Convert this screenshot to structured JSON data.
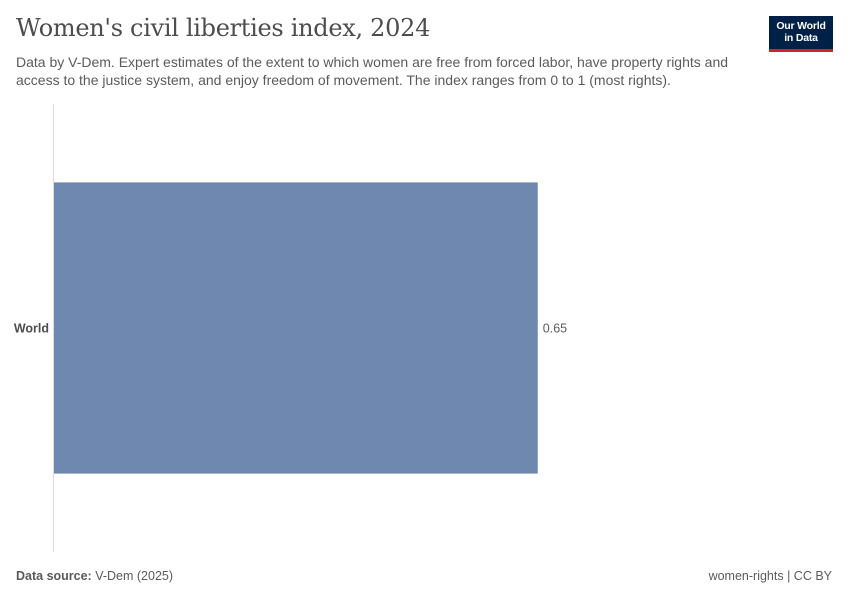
{
  "header": {
    "title": "Women's civil liberties index, 2024",
    "subtitle": "Data by V-Dem. Expert estimates of the extent to which women are free from forced labor, have property rights and access to the justice system, and enjoy freedom of movement. The index ranges from 0 to 1 (most rights).",
    "logo_line1": "Our World",
    "logo_line2": "in Data"
  },
  "chart_data": {
    "type": "bar",
    "orientation": "horizontal",
    "categories": [
      "World"
    ],
    "values": [
      0.65
    ],
    "value_labels": [
      "0.65"
    ],
    "title": "Women's civil liberties index, 2024",
    "xlabel": "",
    "ylabel": "",
    "xlim": [
      0,
      1
    ],
    "grid": false,
    "bar_color": "#6f88b0"
  },
  "footer": {
    "source_label": "Data source:",
    "source_value": "V-Dem (2025)",
    "license": "women-rights | CC BY"
  }
}
